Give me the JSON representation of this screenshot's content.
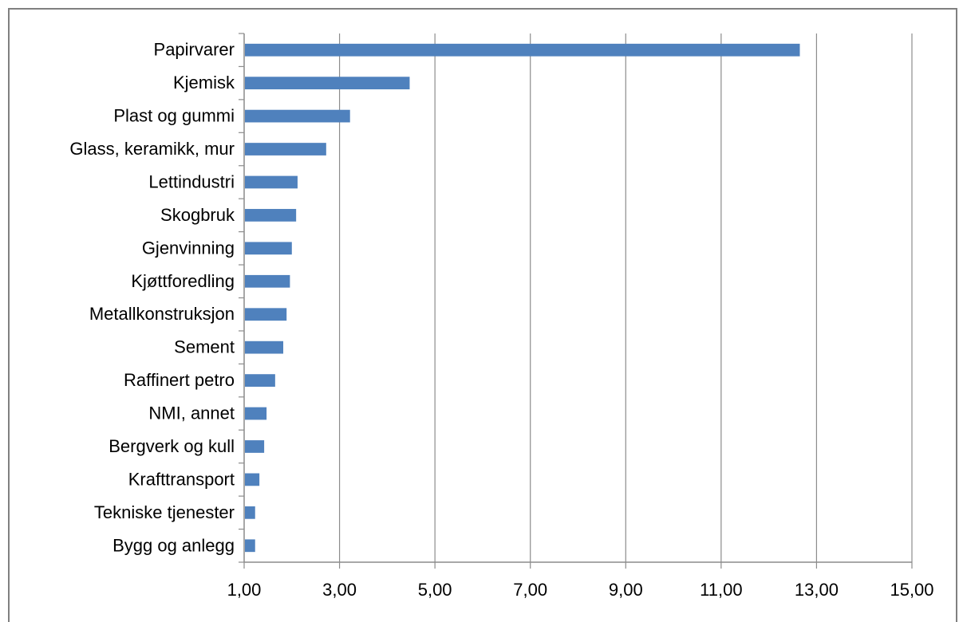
{
  "chart_data": {
    "type": "bar",
    "orientation": "horizontal",
    "categories": [
      "Papirvarer",
      "Kjemisk",
      "Plast og gummi",
      "Glass, keramikk, mur",
      "Lettindustri",
      "Skogbruk",
      "Gjenvinning",
      "Kjøttforedling",
      "Metallkonstruksjon",
      "Sement",
      "Raffinert petro",
      "NMI, annet",
      "Bergverk og kull",
      "Krafttransport",
      "Tekniske tjenester",
      "Bygg og anlegg"
    ],
    "values": [
      12.65,
      4.47,
      3.22,
      2.72,
      2.12,
      2.09,
      2.0,
      1.96,
      1.89,
      1.82,
      1.65,
      1.47,
      1.42,
      1.32,
      1.23,
      1.23
    ],
    "xlim": [
      1,
      15
    ],
    "xticks": [
      1,
      3,
      5,
      7,
      9,
      11,
      13,
      15
    ],
    "xtick_labels": [
      "1,00",
      "3,00",
      "5,00",
      "7,00",
      "9,00",
      "11,00",
      "13,00",
      "15,00"
    ],
    "title": "",
    "xlabel": "",
    "ylabel": "",
    "grid": "vertical",
    "legend": "none",
    "bar_color": "#4f81bd",
    "grid_color": "#8c8c8c"
  }
}
